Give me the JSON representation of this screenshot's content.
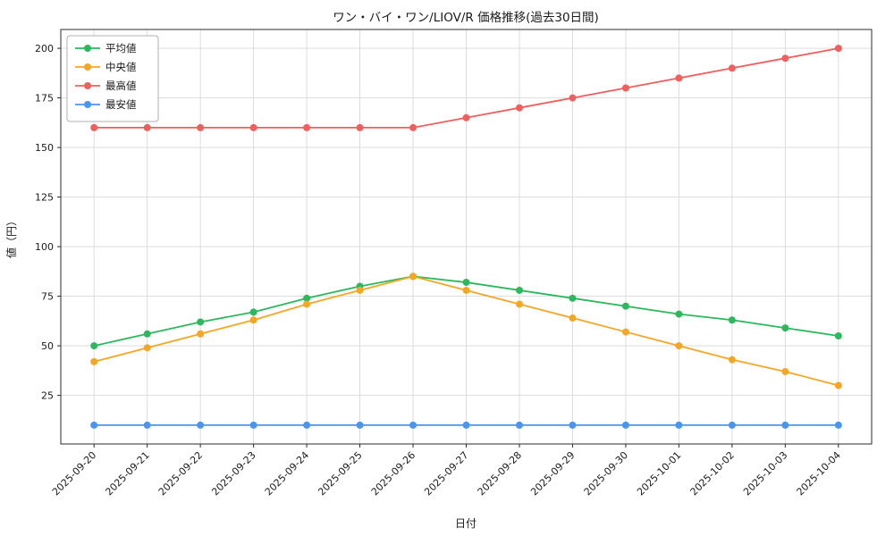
{
  "chart_data": {
    "type": "line",
    "title": "ワン・バイ・ワン/LIOV/R 価格推移(過去30日間)",
    "xlabel": "日付",
    "ylabel": "値（円）",
    "categories": [
      "2025-09-20",
      "2025-09-21",
      "2025-09-22",
      "2025-09-23",
      "2025-09-24",
      "2025-09-25",
      "2025-09-26",
      "2025-09-27",
      "2025-09-28",
      "2025-09-29",
      "2025-09-30",
      "2025-10-01",
      "2025-10-02",
      "2025-10-03",
      "2025-10-04"
    ],
    "series": [
      {
        "name": "平均値",
        "color": "#2cb85c",
        "values": [
          50,
          56,
          62,
          67,
          74,
          80,
          85,
          82,
          78,
          74,
          70,
          66,
          63,
          59,
          55
        ]
      },
      {
        "name": "中央値",
        "color": "#f5a623",
        "values": [
          42,
          49,
          56,
          63,
          71,
          78,
          85,
          78,
          71,
          64,
          57,
          50,
          43,
          37,
          30
        ]
      },
      {
        "name": "最高値",
        "color": "#f15e5e",
        "values": [
          160,
          160,
          160,
          160,
          160,
          160,
          160,
          165,
          170,
          175,
          180,
          185,
          190,
          195,
          200
        ]
      },
      {
        "name": "最安値",
        "color": "#4896f0",
        "values": [
          10,
          10,
          10,
          10,
          10,
          10,
          10,
          10,
          10,
          10,
          10,
          10,
          10,
          10,
          10
        ]
      }
    ],
    "ylim": [
      0.5,
      209.5
    ],
    "yticks": [
      25,
      50,
      75,
      100,
      125,
      150,
      175,
      200
    ],
    "grid": true,
    "legend_position": "upper left",
    "grid_color": "#d9d9d9",
    "axis_color": "#2b2b2b"
  }
}
